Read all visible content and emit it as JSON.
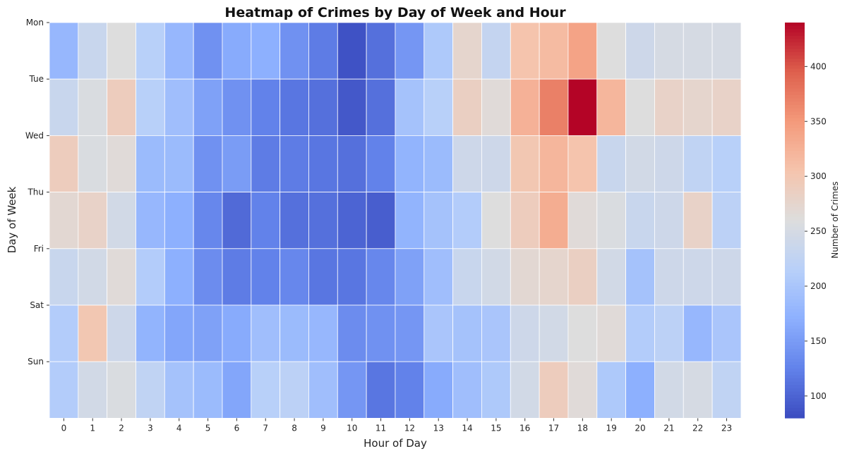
{
  "chart_data": {
    "type": "heatmap",
    "title": "Heatmap of Crimes by Day of Week and Hour",
    "xlabel": "Hour of Day",
    "ylabel": "Day of Week",
    "x_categories": [
      "0",
      "1",
      "2",
      "3",
      "4",
      "5",
      "6",
      "7",
      "8",
      "9",
      "10",
      "11",
      "12",
      "13",
      "14",
      "15",
      "16",
      "17",
      "18",
      "19",
      "20",
      "21",
      "22",
      "23"
    ],
    "y_categories": [
      "Mon",
      "Tue",
      "Wed",
      "Thu",
      "Fri",
      "Sat",
      "Sun"
    ],
    "values": [
      [
        180,
        235,
        260,
        215,
        180,
        140,
        165,
        170,
        140,
        120,
        85,
        110,
        145,
        205,
        275,
        230,
        305,
        315,
        340,
        260,
        240,
        250,
        250,
        250
      ],
      [
        235,
        255,
        290,
        215,
        190,
        155,
        140,
        125,
        115,
        110,
        90,
        110,
        195,
        215,
        285,
        265,
        325,
        370,
        440,
        320,
        260,
        280,
        275,
        280
      ],
      [
        290,
        255,
        265,
        185,
        185,
        140,
        150,
        120,
        120,
        115,
        110,
        125,
        175,
        185,
        240,
        240,
        300,
        320,
        305,
        235,
        245,
        240,
        225,
        215
      ],
      [
        270,
        280,
        245,
        180,
        170,
        130,
        105,
        125,
        110,
        110,
        100,
        95,
        175,
        195,
        210,
        260,
        290,
        330,
        265,
        255,
        235,
        240,
        280,
        220
      ],
      [
        235,
        245,
        265,
        210,
        170,
        135,
        120,
        125,
        130,
        115,
        115,
        130,
        155,
        190,
        235,
        245,
        270,
        275,
        285,
        245,
        195,
        240,
        240,
        240
      ],
      [
        210,
        300,
        240,
        175,
        160,
        155,
        165,
        190,
        185,
        180,
        135,
        140,
        145,
        200,
        195,
        200,
        240,
        245,
        260,
        265,
        210,
        220,
        180,
        200
      ],
      [
        210,
        245,
        255,
        225,
        195,
        185,
        160,
        215,
        220,
        190,
        145,
        115,
        125,
        165,
        190,
        205,
        245,
        290,
        265,
        205,
        170,
        245,
        250,
        225
      ]
    ],
    "colorbar": {
      "label": "Number of Crimes",
      "min": 80,
      "max": 440,
      "ticks": [
        100,
        150,
        200,
        250,
        300,
        350,
        400
      ]
    },
    "colormap": "coolwarm"
  }
}
